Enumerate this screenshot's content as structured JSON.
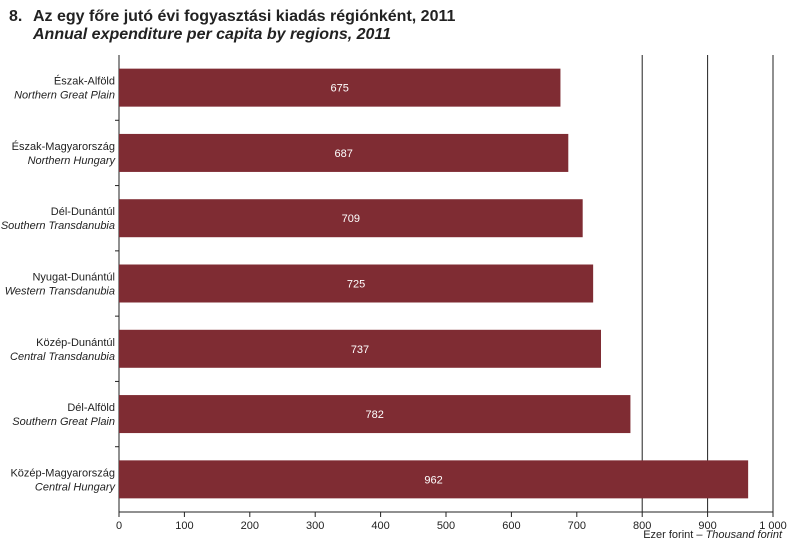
{
  "header": {
    "number": "8.",
    "title_hu": "Az egy főre jutó évi fogyasztási kiadás régiónként, 2011",
    "title_en": "Annual expenditure per capita by regions, 2011"
  },
  "colors": {
    "bar": "#7f2c33",
    "grid": "#222222"
  },
  "chart_data": {
    "type": "bar",
    "orientation": "horizontal",
    "categories": [
      {
        "hu": "Észak-Alföld",
        "en": "Northern Great Plain"
      },
      {
        "hu": "Észak-Magyarország",
        "en": "Northern Hungary"
      },
      {
        "hu": "Dél-Dunántúl",
        "en": "Southern Transdanubia"
      },
      {
        "hu": "Nyugat-Dunántúl",
        "en": "Western Transdanubia"
      },
      {
        "hu": "Közép-Dunántúl",
        "en": "Central Transdanubia"
      },
      {
        "hu": "Dél-Alföld",
        "en": "Southern Great Plain"
      },
      {
        "hu": "Közép-Magyarország",
        "en": "Central Hungary"
      }
    ],
    "values": [
      675,
      687,
      709,
      725,
      737,
      782,
      962
    ],
    "value_labels": [
      "675",
      "687",
      "709",
      "725",
      "737",
      "782",
      "962"
    ],
    "xlim": [
      0,
      1000
    ],
    "xticks": [
      0,
      100,
      200,
      300,
      400,
      500,
      600,
      700,
      800,
      900,
      1000
    ],
    "xtick_labels": [
      "0",
      "100",
      "200",
      "300",
      "400",
      "500",
      "600",
      "700",
      "800",
      "900",
      "1 000"
    ],
    "gridlines_at": [
      800,
      900,
      1000
    ],
    "xlabel_hu": "Ezer forint",
    "xlabel_sep": " – ",
    "xlabel_en": "Thousand forint"
  }
}
